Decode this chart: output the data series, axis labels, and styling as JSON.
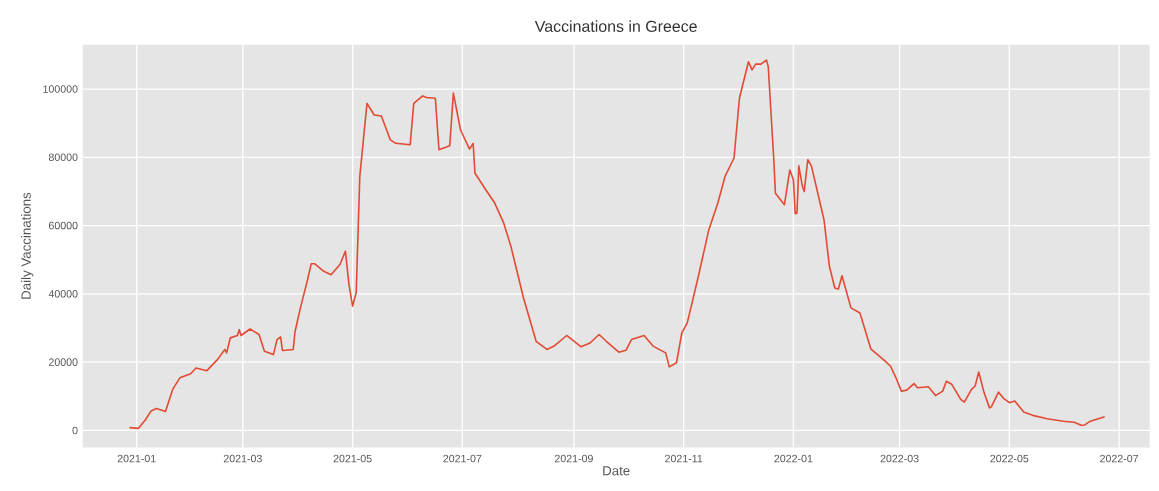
{
  "chart_data": {
    "type": "line",
    "title": "Vaccinations in Greece",
    "xlabel": "Date",
    "ylabel": "Daily Vaccinations",
    "color": "#e24a33",
    "grid": true,
    "xlim": [
      "2020-12-02",
      "2022-07-18"
    ],
    "ylim": [
      -5000,
      113000
    ],
    "xticks": [
      "2021-01",
      "2021-03",
      "2021-05",
      "2021-07",
      "2021-09",
      "2021-11",
      "2022-01",
      "2022-03",
      "2022-05",
      "2022-07"
    ],
    "yticks": [
      0,
      20000,
      40000,
      60000,
      80000,
      100000
    ],
    "x": [
      "2020-12-28",
      "2021-01-02",
      "2021-01-06",
      "2021-01-09",
      "2021-01-12",
      "2021-01-17",
      "2021-01-21",
      "2021-01-25",
      "2021-01-31",
      "2021-02-03",
      "2021-02-09",
      "2021-02-15",
      "2021-02-19",
      "2021-02-20",
      "2021-02-22",
      "2021-02-26",
      "2021-02-27",
      "2021-02-28",
      "2021-03-05",
      "2021-03-10",
      "2021-03-13",
      "2021-03-18",
      "2021-03-20",
      "2021-03-22",
      "2021-03-23",
      "2021-03-29",
      "2021-03-30",
      "2021-04-02",
      "2021-04-06",
      "2021-04-08",
      "2021-04-10",
      "2021-04-15",
      "2021-04-19",
      "2021-04-24",
      "2021-04-27",
      "2021-04-29",
      "2021-05-01",
      "2021-05-03",
      "2021-05-05",
      "2021-05-09",
      "2021-05-13",
      "2021-05-17",
      "2021-05-22",
      "2021-05-25",
      "2021-06-02",
      "2021-06-04",
      "2021-06-09",
      "2021-06-11",
      "2021-06-16",
      "2021-06-18",
      "2021-06-24",
      "2021-06-26",
      "2021-06-30",
      "2021-07-05",
      "2021-07-07",
      "2021-07-08",
      "2021-07-14",
      "2021-07-19",
      "2021-07-24",
      "2021-07-28",
      "2021-08-04",
      "2021-08-11",
      "2021-08-17",
      "2021-08-21",
      "2021-08-28",
      "2021-09-05",
      "2021-09-10",
      "2021-09-15",
      "2021-09-19",
      "2021-09-26",
      "2021-09-30",
      "2021-10-03",
      "2021-10-10",
      "2021-10-15",
      "2021-10-22",
      "2021-10-24",
      "2021-10-28",
      "2021-10-31",
      "2021-11-03",
      "2021-11-09",
      "2021-11-15",
      "2021-11-20",
      "2021-11-24",
      "2021-11-29",
      "2021-12-02",
      "2021-12-07",
      "2021-12-09",
      "2021-12-11",
      "2021-12-14",
      "2021-12-17",
      "2021-12-18",
      "2021-12-21",
      "2021-12-22",
      "2021-12-27",
      "2021-12-30",
      "2022-01-01",
      "2022-01-02",
      "2022-01-03",
      "2022-01-04",
      "2022-01-06",
      "2022-01-07",
      "2022-01-09",
      "2022-01-11",
      "2022-01-18",
      "2022-01-21",
      "2022-01-24",
      "2022-01-26",
      "2022-01-28",
      "2022-02-02",
      "2022-02-07",
      "2022-02-13",
      "2022-02-21",
      "2022-02-24",
      "2022-02-27",
      "2022-03-02",
      "2022-03-05",
      "2022-03-09",
      "2022-03-11",
      "2022-03-17",
      "2022-03-21",
      "2022-03-25",
      "2022-03-27",
      "2022-03-30",
      "2022-04-04",
      "2022-04-06",
      "2022-04-10",
      "2022-04-12",
      "2022-04-14",
      "2022-04-17",
      "2022-04-20",
      "2022-04-21",
      "2022-04-25",
      "2022-04-28",
      "2022-05-01",
      "2022-05-04",
      "2022-05-09",
      "2022-05-14",
      "2022-05-22",
      "2022-05-31",
      "2022-06-06",
      "2022-06-10",
      "2022-06-12",
      "2022-06-15",
      "2022-06-23"
    ],
    "values": [
      800,
      600,
      3200,
      5700,
      6400,
      5500,
      12000,
      15400,
      16600,
      18300,
      17500,
      20800,
      23700,
      22700,
      27100,
      27800,
      29500,
      27800,
      29700,
      28100,
      23200,
      22200,
      26600,
      27400,
      23400,
      23700,
      28900,
      35900,
      44200,
      48800,
      48800,
      46600,
      45600,
      48600,
      52500,
      42700,
      36400,
      40300,
      74400,
      95800,
      92400,
      92100,
      85100,
      84100,
      83700,
      95800,
      98000,
      97500,
      97300,
      82200,
      83400,
      98800,
      88000,
      82400,
      84100,
      75400,
      70500,
      66600,
      60700,
      53900,
      38800,
      26100,
      23700,
      24700,
      27800,
      24500,
      25600,
      28100,
      26100,
      22900,
      23500,
      26600,
      27800,
      24700,
      22700,
      18600,
      19800,
      28600,
      31500,
      44700,
      58800,
      66600,
      74400,
      79800,
      97300,
      108000,
      105600,
      107300,
      107300,
      108500,
      106600,
      80200,
      69500,
      66100,
      76300,
      73400,
      63500,
      63700,
      77500,
      71500,
      70000,
      79300,
      77500,
      61700,
      48100,
      41700,
      41400,
      45300,
      35900,
      34400,
      23900,
      20300,
      18800,
      15400,
      11500,
      11800,
      13700,
      12500,
      12800,
      10200,
      11500,
      14400,
      13500,
      9100,
      8300,
      12000,
      13000,
      17100,
      11000,
      6600,
      6900,
      11200,
      9300,
      8100,
      8600,
      5400,
      4400,
      3400,
      2700,
      2400,
      1500,
      1600,
      2700,
      4000
    ]
  }
}
